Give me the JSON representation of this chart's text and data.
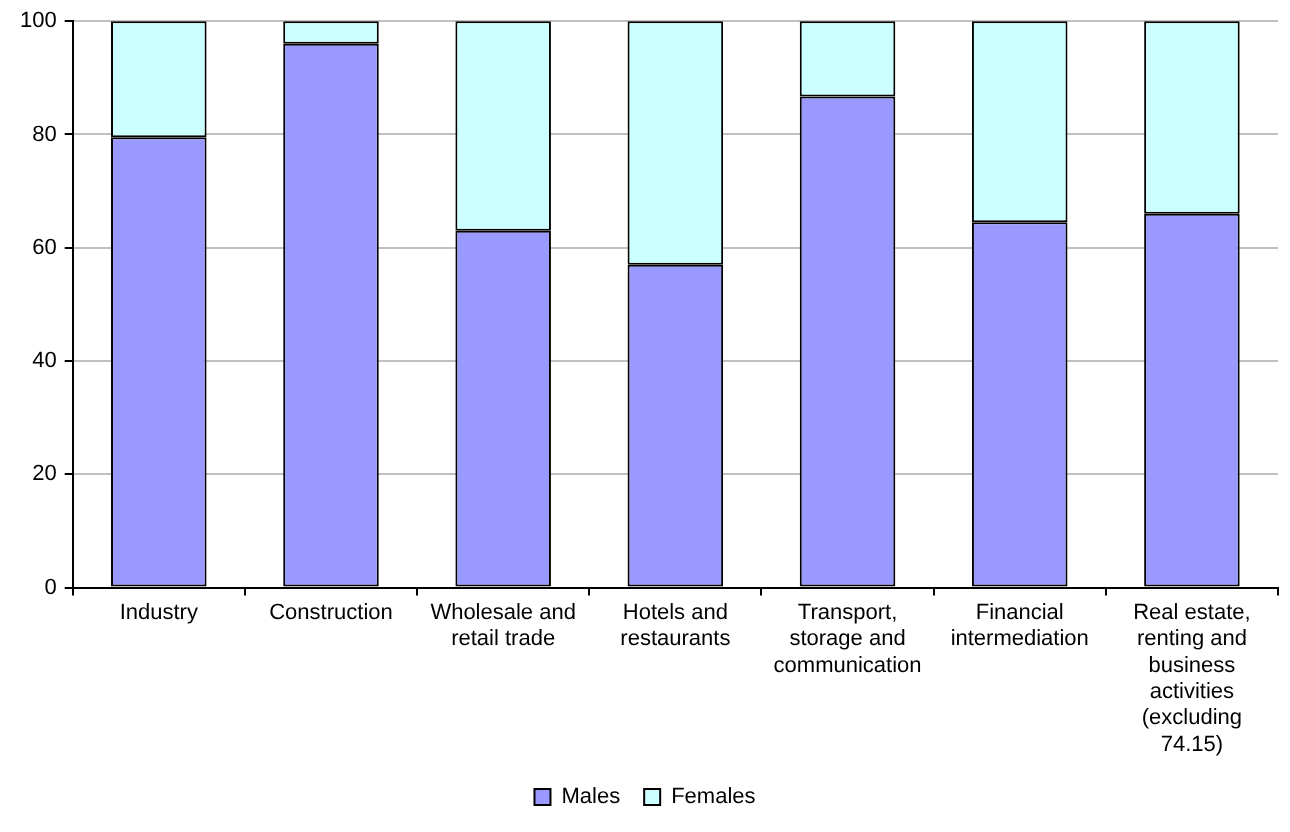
{
  "chart_data": {
    "type": "bar",
    "stacked": true,
    "categories": [
      "Industry",
      "Construction",
      "Wholesale and retail trade",
      "Hotels and restaurants",
      "Transport, storage and communication",
      "Financial intermediation",
      "Real estate, renting and business activities (excluding 74.15)"
    ],
    "series": [
      {
        "name": "Males",
        "color": "#9999ff",
        "values": [
          79.5,
          96,
          63,
          57,
          86.7,
          64.5,
          66
        ]
      },
      {
        "name": "Females",
        "color": "#ccffff",
        "values": [
          20.5,
          4,
          37,
          43,
          13.3,
          35.5,
          34
        ]
      }
    ],
    "ylim": [
      0,
      100
    ],
    "yticks": [
      0,
      20,
      40,
      60,
      80,
      100
    ],
    "grid": "y",
    "legend": "bottom"
  }
}
